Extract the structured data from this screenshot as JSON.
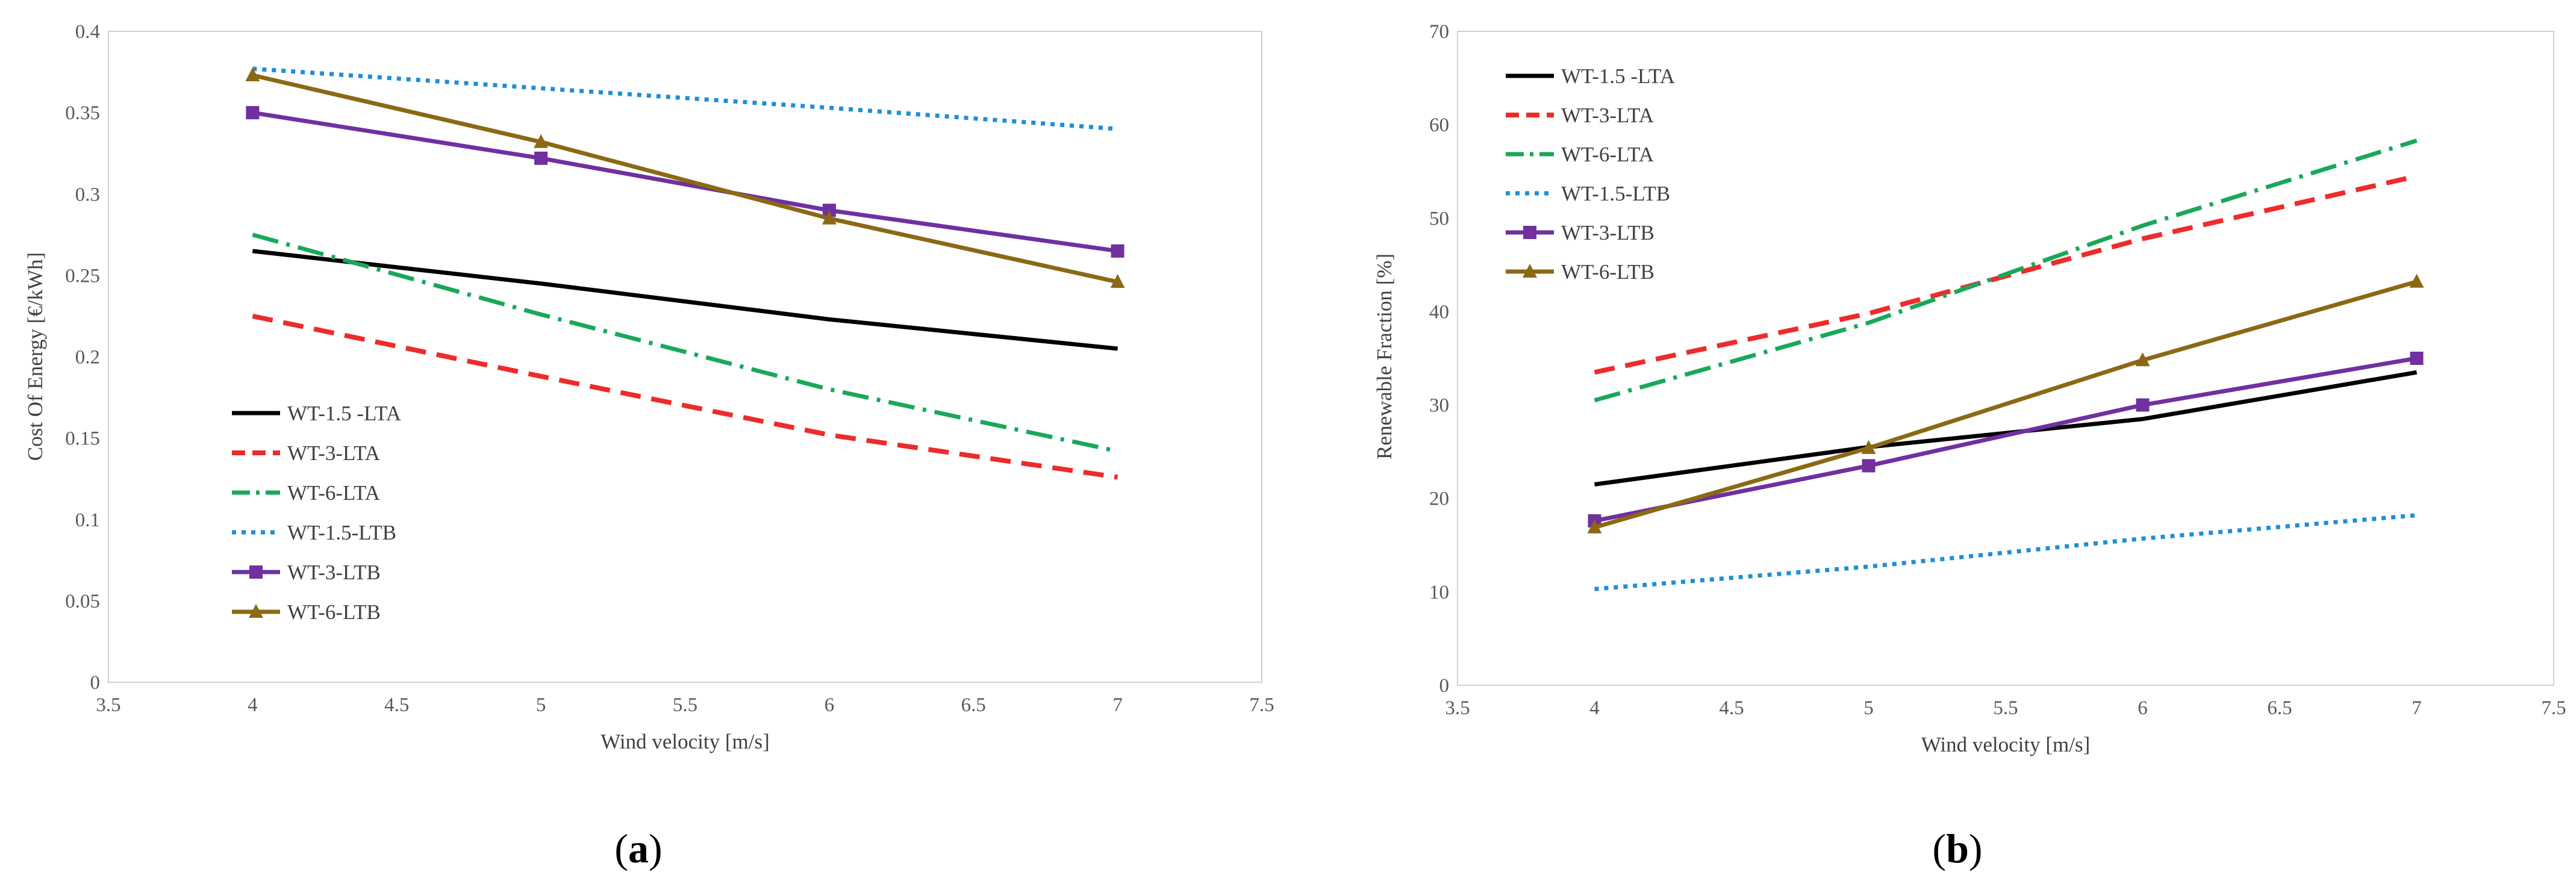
{
  "chart_data": [
    {
      "type": "line",
      "panel_label": "a",
      "xlabel": "Wind velocity [m/s]",
      "ylabel": "Cost Of Energy [€/kWh]",
      "xlim": [
        3.5,
        7.5
      ],
      "ylim": [
        0,
        0.4
      ],
      "xticks": [
        "3.5",
        "4",
        "4.5",
        "5",
        "5.5",
        "6",
        "6.5",
        "7",
        "7.5"
      ],
      "yticks": [
        "0",
        "0.05",
        "0.1",
        "0.15",
        "0.2",
        "0.25",
        "0.3",
        "0.35",
        "0.4"
      ],
      "legend_position": "bottom-left",
      "x": [
        4,
        5,
        6,
        7
      ],
      "series": [
        {
          "name": "WT-1.5 -LTA",
          "values": [
            0.265,
            0.245,
            0.223,
            0.205
          ],
          "color": "#000000",
          "dash": "solid",
          "marker": "none"
        },
        {
          "name": "WT-3-LTA",
          "values": [
            0.225,
            0.188,
            0.152,
            0.126
          ],
          "color": "#ee2b2b",
          "dash": "dash",
          "marker": "none"
        },
        {
          "name": "WT-6-LTA",
          "values": [
            0.275,
            0.226,
            0.18,
            0.142
          ],
          "color": "#19a85a",
          "dash": "dashdot",
          "marker": "none"
        },
        {
          "name": "WT-1.5-LTB",
          "values": [
            0.377,
            0.365,
            0.353,
            0.34
          ],
          "color": "#1f8fd6",
          "dash": "dot",
          "marker": "none"
        },
        {
          "name": "WT-3-LTB",
          "values": [
            0.35,
            0.322,
            0.29,
            0.265
          ],
          "color": "#7030a0",
          "dash": "solid",
          "marker": "square"
        },
        {
          "name": "WT-6-LTB",
          "values": [
            0.373,
            0.332,
            0.285,
            0.246
          ],
          "color": "#8b6914",
          "dash": "solid",
          "marker": "triangle"
        }
      ]
    },
    {
      "type": "line",
      "panel_label": "b",
      "xlabel": "Wind velocity [m/s]",
      "ylabel": "Renewable Fraction [%]",
      "xlim": [
        3.5,
        7.5
      ],
      "ylim": [
        0,
        70
      ],
      "xticks": [
        "3.5",
        "4",
        "4.5",
        "5",
        "5.5",
        "6",
        "6.5",
        "7",
        "7.5"
      ],
      "yticks": [
        "0",
        "10",
        "20",
        "30",
        "40",
        "50",
        "60",
        "70"
      ],
      "legend_position": "top-left",
      "x": [
        4,
        5,
        6,
        7
      ],
      "series": [
        {
          "name": "WT-1.5 -LTA",
          "values": [
            21.5,
            25.5,
            28.5,
            33.5
          ],
          "color": "#000000",
          "dash": "solid",
          "marker": "none"
        },
        {
          "name": "WT-3-LTA",
          "values": [
            33.5,
            39.8,
            47.8,
            54.5
          ],
          "color": "#ee2b2b",
          "dash": "dash",
          "marker": "none"
        },
        {
          "name": "WT-6-LTA",
          "values": [
            30.5,
            38.8,
            49.2,
            58.3
          ],
          "color": "#19a85a",
          "dash": "dashdot",
          "marker": "none"
        },
        {
          "name": "WT-1.5-LTB",
          "values": [
            10.3,
            12.7,
            15.7,
            18.2
          ],
          "color": "#1f8fd6",
          "dash": "dot",
          "marker": "none"
        },
        {
          "name": "WT-3-LTB",
          "values": [
            17.6,
            23.5,
            30.0,
            35.0
          ],
          "color": "#7030a0",
          "dash": "solid",
          "marker": "square"
        },
        {
          "name": "WT-6-LTB",
          "values": [
            16.9,
            25.4,
            34.8,
            43.2
          ],
          "color": "#8b6914",
          "dash": "solid",
          "marker": "triangle"
        }
      ]
    }
  ]
}
